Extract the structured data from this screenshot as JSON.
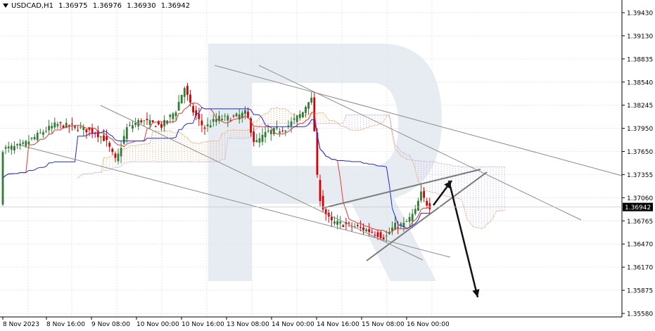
{
  "header": {
    "symbol": "USDCAD,H1",
    "open": "1.36975",
    "high": "1.36976",
    "low": "1.36930",
    "close": "1.36942"
  },
  "chart_data": {
    "type": "candlestick",
    "symbol": "USDCAD",
    "timeframe": "H1",
    "ylim": [
      1.3558,
      1.3943
    ],
    "y_ticks": [
      "1.39430",
      "1.39130",
      "1.38835",
      "1.38540",
      "1.38245",
      "1.37950",
      "1.37650",
      "1.37355",
      "1.37060",
      "1.36765",
      "1.36470",
      "1.36170",
      "1.35875",
      "1.35580"
    ],
    "x_ticks": [
      "8 Nov 2023",
      "8 Nov 16:00",
      "9 Nov 08:00",
      "10 Nov 00:00",
      "10 Nov 16:00",
      "13 Nov 08:00",
      "14 Nov 00:00",
      "14 Nov 16:00",
      "15 Nov 08:00",
      "16 Nov 00:00"
    ],
    "current_price_label": "1.36942",
    "grid": true,
    "colors": {
      "bull": "#2e7d32",
      "bear": "#d50000",
      "tenkan": "#e53935",
      "kijun": "#1e2bd6",
      "cloud_a": "#f0a060",
      "cloud_b": "#b9a7e0",
      "trendline": "#8c8c8c",
      "wedge": "#7a7a7a",
      "arrow": "#111111",
      "watermark": "#dfe5ee"
    },
    "indicators": [
      "Ichimoku Kinko Hyo"
    ],
    "annotations": [
      "descending trendlines",
      "rising wedge",
      "forecast arrows up then down"
    ]
  }
}
